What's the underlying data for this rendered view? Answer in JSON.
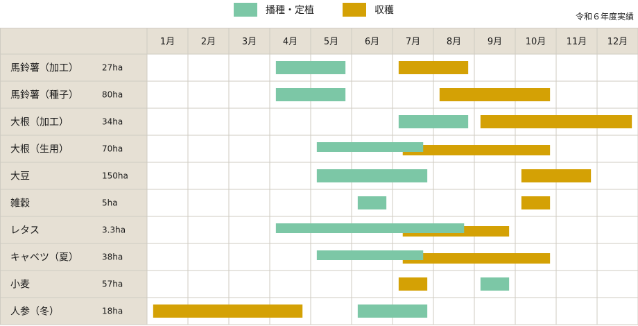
{
  "legend": {
    "sowing": "播種・定植",
    "harvest": "収穫",
    "note": "令和６年度実績"
  },
  "colors": {
    "sowing": "#7cc7a6",
    "harvest": "#d4a105",
    "label_bg": "#e6e0d4",
    "grid": "#cfcbc2"
  },
  "chart_data": {
    "type": "gantt",
    "months": [
      "1月",
      "2月",
      "3月",
      "4月",
      "5月",
      "6月",
      "7月",
      "8月",
      "9月",
      "10月",
      "11月",
      "12月"
    ],
    "crops": [
      {
        "name": "馬鈴薯（加工）",
        "area": "27ha",
        "sowing": [
          [
            4.15,
            5.85
          ]
        ],
        "harvest": [
          [
            7.15,
            8.85
          ]
        ]
      },
      {
        "name": "馬鈴薯（種子）",
        "area": "80ha",
        "sowing": [
          [
            4.15,
            5.85
          ]
        ],
        "harvest": [
          [
            8.15,
            10.85
          ]
        ]
      },
      {
        "name": "大根（加工）",
        "area": "34ha",
        "sowing": [
          [
            7.15,
            8.85
          ]
        ],
        "harvest": [
          [
            9.15,
            12.85
          ]
        ]
      },
      {
        "name": "大根（生用）",
        "area": "70ha",
        "sowing": [
          [
            5.15,
            7.75
          ]
        ],
        "harvest": [
          [
            7.25,
            10.85
          ]
        ]
      },
      {
        "name": "大豆",
        "area": "150ha",
        "sowing": [
          [
            5.15,
            7.85
          ]
        ],
        "harvest": [
          [
            10.15,
            11.85
          ]
        ]
      },
      {
        "name": "雑穀",
        "area": "5ha",
        "sowing": [
          [
            6.15,
            6.85
          ]
        ],
        "harvest": [
          [
            10.15,
            10.85
          ]
        ]
      },
      {
        "name": "レタス",
        "area": "3.3ha",
        "sowing": [
          [
            4.15,
            8.75
          ]
        ],
        "harvest": [
          [
            7.25,
            9.85
          ]
        ]
      },
      {
        "name": "キャベツ（夏）",
        "area": "38ha",
        "sowing": [
          [
            5.15,
            7.75
          ]
        ],
        "harvest": [
          [
            7.25,
            10.85
          ]
        ]
      },
      {
        "name": "小麦",
        "area": "57ha",
        "sowing": [
          [
            9.15,
            9.85
          ]
        ],
        "harvest": [
          [
            7.15,
            7.85
          ]
        ]
      },
      {
        "name": "人参（冬）",
        "area": "18ha",
        "sowing": [
          [
            6.15,
            7.85
          ]
        ],
        "harvest": [
          [
            1.15,
            4.8
          ]
        ]
      }
    ]
  }
}
